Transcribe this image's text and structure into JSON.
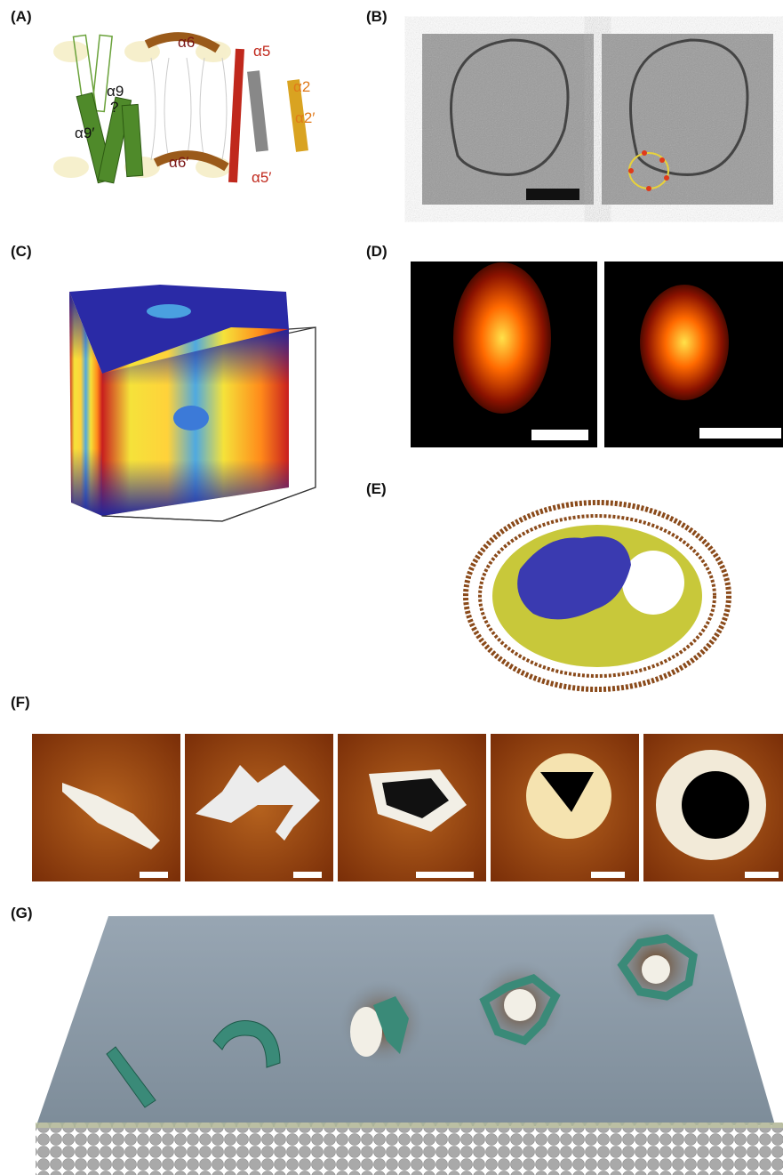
{
  "panels": [
    {
      "label": "(A)",
      "annotations": [
        "α6",
        "α5",
        "α2",
        "α2′",
        "α9",
        "?",
        "α9′",
        "α6′",
        "α5′"
      ]
    },
    {
      "label": "(B)"
    },
    {
      "label": "(C)"
    },
    {
      "label": "(D)"
    },
    {
      "label": "(E)"
    },
    {
      "label": "(F)"
    },
    {
      "label": "(G)"
    }
  ]
}
